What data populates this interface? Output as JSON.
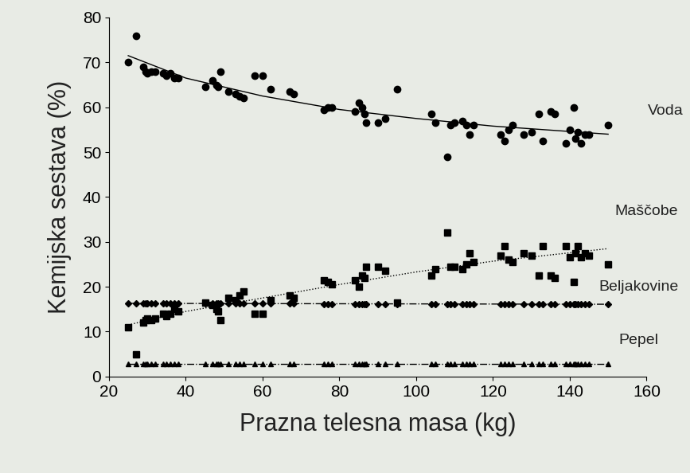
{
  "chart_data": {
    "type": "scatter",
    "x_label": "Prazna telesna masa (kg)",
    "y_label": "Kemijska sestava (%)",
    "xlim": [
      20,
      160
    ],
    "xticks": [
      20,
      40,
      60,
      80,
      100,
      120,
      140,
      160
    ],
    "ylim": [
      0,
      80
    ],
    "yticks": [
      0,
      10,
      20,
      30,
      40,
      50,
      60,
      70,
      80
    ],
    "grid": false,
    "x": [
      25,
      27,
      29,
      29.5,
      30,
      31,
      32,
      34,
      35,
      36,
      37,
      38,
      45,
      47,
      48,
      48.5,
      49,
      51,
      53,
      54,
      55,
      58,
      60,
      62,
      67,
      68,
      76,
      77,
      78,
      84,
      85,
      86,
      86.5,
      87,
      90,
      92,
      95,
      104,
      105,
      108,
      109,
      110,
      112,
      113,
      114,
      115,
      122,
      123,
      124,
      125,
      128,
      130,
      132,
      133,
      135,
      136,
      139,
      140,
      141,
      141.5,
      142,
      143,
      144,
      145,
      150
    ],
    "series": [
      {
        "name": "Voda",
        "color": "#000000",
        "marker": "circle",
        "line_style": "solid",
        "values": [
          70,
          76,
          69,
          68,
          67.5,
          68,
          68,
          67.5,
          67,
          67.5,
          66.5,
          66.5,
          64.5,
          66,
          65,
          64.5,
          68,
          63.5,
          63,
          62.5,
          62,
          67,
          67,
          64,
          63.5,
          63,
          59.5,
          60,
          60,
          59,
          61,
          60,
          58.5,
          56.5,
          56.5,
          57.5,
          64,
          58.5,
          56.5,
          49,
          56,
          56.5,
          57,
          56,
          54,
          56,
          54,
          52.5,
          55,
          56,
          54,
          54.5,
          58.5,
          52.5,
          59,
          58.5,
          52,
          55,
          60,
          53,
          54.5,
          52,
          54,
          54,
          56
        ],
        "trend": {
          "x": [
            25,
            40,
            60,
            80,
            100,
            120,
            150
          ],
          "values": [
            71.5,
            66.5,
            62.5,
            59.5,
            57.5,
            55.8,
            54
          ]
        }
      },
      {
        "name": "Maščobe",
        "color": "#000000",
        "marker": "square",
        "line_style": "dotted",
        "values": [
          11,
          5,
          12,
          12.5,
          13,
          12.5,
          13,
          14,
          13.5,
          14,
          15,
          14.5,
          16.5,
          16,
          15,
          14.5,
          12.5,
          17.5,
          17,
          18,
          19,
          14,
          14,
          17,
          18,
          17.5,
          21.5,
          21,
          20.5,
          21.5,
          20,
          22.5,
          22,
          24.5,
          24.5,
          23.5,
          16.5,
          22.5,
          24,
          32,
          24.5,
          24.5,
          24,
          25,
          27.5,
          25.5,
          27,
          29,
          26,
          25.5,
          27.5,
          27,
          22.5,
          29,
          22.5,
          22,
          29,
          26.5,
          21,
          27.5,
          29,
          26.5,
          27.5,
          27,
          25
        ],
        "trend": {
          "x": [
            25,
            40,
            60,
            80,
            100,
            120,
            150
          ],
          "values": [
            11.5,
            14.5,
            17.5,
            20.5,
            23.3,
            25.7,
            28.5
          ]
        }
      },
      {
        "name": "Beljakovine",
        "color": "#000000",
        "marker": "diamond",
        "line_style": "dashdot",
        "values": [
          16.3,
          16.3,
          16.3,
          16.3,
          16.3,
          16.3,
          16.3,
          16.3,
          16.3,
          16.3,
          16.3,
          16.3,
          16.3,
          16.3,
          16.3,
          16.3,
          16.3,
          16.3,
          16.3,
          16.3,
          16.3,
          16.3,
          16.3,
          16.3,
          16.3,
          16.3,
          16.2,
          16.2,
          16.2,
          16.2,
          16.2,
          16.2,
          16.2,
          16.2,
          16.2,
          16.2,
          16.2,
          16.2,
          16.2,
          16.2,
          16.2,
          16.2,
          16.2,
          16.2,
          16.2,
          16.2,
          16.1,
          16.1,
          16.1,
          16.1,
          16.1,
          16.1,
          16.1,
          16.1,
          16.1,
          16.1,
          16.1,
          16.1,
          16.1,
          16.1,
          16.1,
          16.1,
          16.1,
          16.1,
          16.1
        ],
        "trend": {
          "x": [
            25,
            150
          ],
          "values": [
            16.3,
            16.1
          ]
        }
      },
      {
        "name": "Pepel",
        "color": "#000000",
        "marker": "triangle",
        "line_style": "dashdot",
        "values": [
          2.8,
          2.8,
          2.8,
          2.8,
          2.8,
          2.8,
          2.8,
          2.8,
          2.8,
          2.8,
          2.8,
          2.8,
          2.8,
          2.8,
          2.8,
          2.8,
          2.8,
          2.8,
          2.8,
          2.8,
          2.8,
          2.8,
          2.8,
          2.8,
          2.8,
          2.8,
          2.8,
          2.8,
          2.8,
          2.8,
          2.8,
          2.8,
          2.8,
          2.8,
          2.8,
          2.8,
          2.8,
          2.8,
          2.8,
          2.8,
          2.8,
          2.8,
          2.8,
          2.8,
          2.8,
          2.8,
          2.8,
          2.8,
          2.8,
          2.8,
          2.8,
          2.8,
          2.8,
          2.8,
          2.8,
          2.8,
          2.8,
          2.8,
          2.8,
          2.8,
          2.8,
          2.8,
          2.8,
          2.8,
          2.8
        ],
        "trend": {
          "x": [
            25,
            150
          ],
          "values": [
            2.8,
            2.8
          ]
        }
      }
    ]
  }
}
